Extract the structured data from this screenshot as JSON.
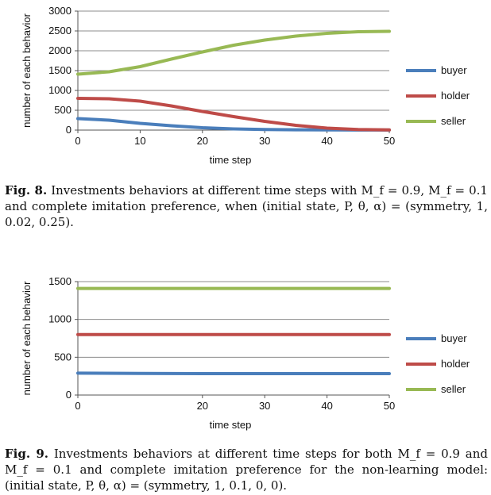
{
  "chart_data": [
    {
      "type": "line",
      "xlabel": "time step",
      "ylabel": "number of each behavior",
      "xlim": [
        0,
        50
      ],
      "ylim": [
        0,
        3000
      ],
      "xticks": [
        0,
        10,
        20,
        30,
        40,
        50
      ],
      "yticks": [
        0,
        500,
        1000,
        1500,
        2000,
        2500,
        3000
      ],
      "grid": "horizontal",
      "legend": "right",
      "x": [
        0,
        5,
        10,
        15,
        20,
        25,
        30,
        35,
        40,
        45,
        50
      ],
      "series": [
        {
          "name": "buyer",
          "color": "#4a7ebb",
          "values": [
            290,
            250,
            170,
            110,
            60,
            30,
            15,
            8,
            4,
            2,
            1
          ]
        },
        {
          "name": "holder",
          "color": "#be4b48",
          "values": [
            800,
            790,
            730,
            610,
            470,
            340,
            220,
            120,
            50,
            15,
            5
          ]
        },
        {
          "name": "seller",
          "color": "#98b954",
          "values": [
            1410,
            1470,
            1600,
            1790,
            1970,
            2140,
            2270,
            2370,
            2440,
            2480,
            2490
          ]
        }
      ]
    },
    {
      "type": "line",
      "xlabel": "time step",
      "ylabel": "number of each behavior",
      "xlim": [
        0,
        50
      ],
      "ylim": [
        0,
        1500
      ],
      "xticks": [
        0,
        20,
        30,
        40,
        50
      ],
      "yticks": [
        0,
        500,
        1000,
        1500
      ],
      "grid": "horizontal",
      "legend": "right",
      "x": [
        0,
        10,
        20,
        30,
        40,
        50
      ],
      "series": [
        {
          "name": "buyer",
          "color": "#4a7ebb",
          "values": [
            290,
            285,
            283,
            283,
            283,
            283
          ]
        },
        {
          "name": "holder",
          "color": "#be4b48",
          "values": [
            800,
            800,
            800,
            800,
            800,
            800
          ]
        },
        {
          "name": "seller",
          "color": "#98b954",
          "values": [
            1410,
            1410,
            1410,
            1410,
            1410,
            1410
          ]
        }
      ]
    }
  ],
  "captions": {
    "fig8": {
      "label": "Fig. 8.",
      "text": "Investments behaviors at different time steps with M_f = 0.9, M_f = 0.1 and complete imitation preference, when (initial state, P, θ, α) = (symmetry, 1, 0.02, 0.25)."
    },
    "fig9": {
      "label": "Fig. 9.",
      "text": "Investments behaviors at different time steps for both M_f = 0.9 and M_f = 0.1 and complete imitation preference for the non-learning model: (initial state, P, θ, α) = (symmetry, 1, 0.1, 0, 0)."
    }
  }
}
